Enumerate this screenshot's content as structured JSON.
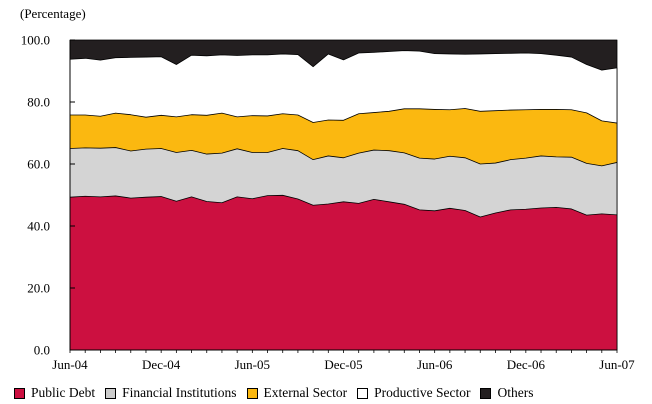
{
  "chart_data": {
    "type": "area",
    "stacked": true,
    "unit_label": "(Percentage)",
    "ylim": [
      0,
      100
    ],
    "yticks": [
      0,
      20,
      40,
      60,
      80,
      100
    ],
    "ytick_labels": [
      "0.0",
      "20.0",
      "40.0",
      "60.0",
      "80.0",
      "100.0"
    ],
    "x": [
      "Jun-04",
      "Jul-04",
      "Aug-04",
      "Sep-04",
      "Oct-04",
      "Nov-04",
      "Dec-04",
      "Jan-05",
      "Feb-05",
      "Mar-05",
      "Apr-05",
      "May-05",
      "Jun-05",
      "Jul-05",
      "Aug-05",
      "Sep-05",
      "Oct-05",
      "Nov-05",
      "Dec-05",
      "Jan-06",
      "Feb-06",
      "Mar-06",
      "Apr-06",
      "May-06",
      "Jun-06",
      "Jul-06",
      "Aug-06",
      "Sep-06",
      "Oct-06",
      "Nov-06",
      "Dec-06",
      "Jan-07",
      "Feb-07",
      "Mar-07",
      "Apr-07",
      "May-07",
      "Jun-07"
    ],
    "xtick_labels": [
      {
        "index": 0,
        "label": "Jun-04"
      },
      {
        "index": 6,
        "label": "Dec-04"
      },
      {
        "index": 12,
        "label": "Jun-05"
      },
      {
        "index": 18,
        "label": "Dec-05"
      },
      {
        "index": 24,
        "label": "Jun-06"
      },
      {
        "index": 30,
        "label": "Dec-06"
      },
      {
        "index": 36,
        "label": "Jun-07"
      }
    ],
    "series": [
      {
        "name": "Public Debt",
        "color": "#cc1040",
        "swatch": "#cc1040",
        "cumulative": [
          49.3,
          49.6,
          49.4,
          49.7,
          49.0,
          49.3,
          49.5,
          48.0,
          49.4,
          47.9,
          47.5,
          49.4,
          48.8,
          49.8,
          49.9,
          48.7,
          46.7,
          47.1,
          47.8,
          47.3,
          48.6,
          47.8,
          47.0,
          45.2,
          44.9,
          45.7,
          45.0,
          42.9,
          44.2,
          45.2,
          45.4,
          45.8,
          46.0,
          45.5,
          43.5,
          43.9,
          43.6
        ]
      },
      {
        "name": "Financial Institutions",
        "color": "#d4d4d4",
        "swatch": "#cccccc",
        "cumulative": [
          65.0,
          65.2,
          65.1,
          65.3,
          64.2,
          64.8,
          65.0,
          63.7,
          64.4,
          63.2,
          63.5,
          64.9,
          63.7,
          63.7,
          65.0,
          64.3,
          61.4,
          62.6,
          62.0,
          63.5,
          64.5,
          64.3,
          63.6,
          61.9,
          61.6,
          62.5,
          62.0,
          60.0,
          60.3,
          61.4,
          61.9,
          62.6,
          62.3,
          62.2,
          60.2,
          59.4,
          60.5
        ]
      },
      {
        "name": "External Sector",
        "color": "#fbb810",
        "swatch": "#fbb810",
        "cumulative": [
          75.8,
          75.8,
          75.4,
          76.4,
          75.9,
          75.1,
          75.7,
          75.2,
          75.9,
          75.7,
          76.4,
          75.2,
          75.6,
          75.5,
          76.2,
          75.8,
          73.4,
          74.2,
          74.1,
          76.2,
          76.6,
          77.0,
          77.8,
          77.8,
          77.6,
          77.5,
          77.9,
          77.0,
          77.2,
          77.4,
          77.5,
          77.6,
          77.6,
          77.5,
          76.5,
          73.9,
          73.2
        ]
      },
      {
        "name": "Productive Sector",
        "color": "#ffffff",
        "swatch": "#ffffff",
        "cumulative": [
          93.8,
          94.1,
          93.5,
          94.3,
          94.4,
          94.5,
          94.6,
          92.1,
          95.1,
          94.9,
          95.2,
          95.0,
          95.2,
          95.2,
          95.5,
          95.3,
          91.4,
          95.5,
          93.6,
          95.8,
          96.0,
          96.3,
          96.6,
          96.4,
          95.6,
          95.5,
          95.4,
          95.5,
          95.6,
          95.7,
          95.8,
          95.6,
          95.1,
          94.5,
          92.1,
          90.3,
          91.0
        ]
      },
      {
        "name": "Others",
        "color": "#231f20",
        "swatch": "#231f20",
        "cumulative": [
          100,
          100,
          100,
          100,
          100,
          100,
          100,
          100,
          100,
          100,
          100,
          100,
          100,
          100,
          100,
          100,
          100,
          100,
          100,
          100,
          100,
          100,
          100,
          100,
          100,
          100,
          100,
          100,
          100,
          100,
          100,
          100,
          100,
          100,
          100,
          100,
          100
        ]
      }
    ],
    "legend_position": "bottom",
    "grid": false
  }
}
